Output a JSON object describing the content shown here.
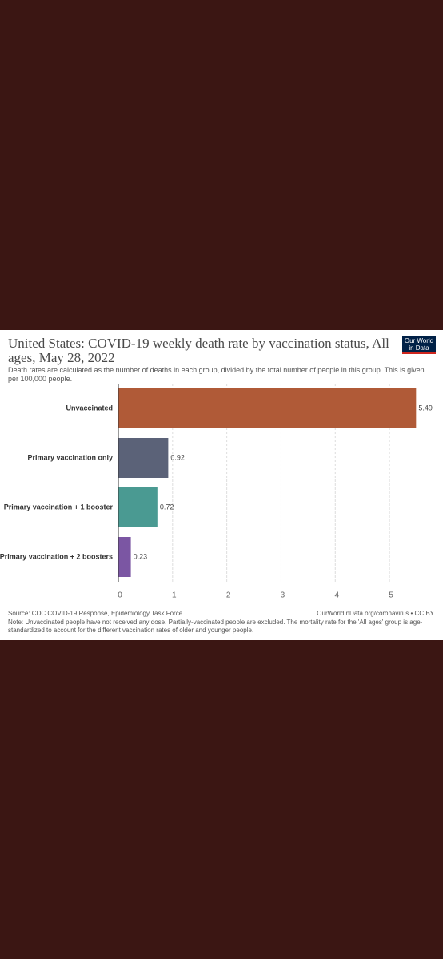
{
  "chart_data": {
    "type": "bar",
    "orientation": "horizontal",
    "title": "United States: COVID-19 weekly death rate by vaccination status, All ages, May 28, 2022",
    "subtitle": "Death rates are calculated as the number of deaths in each group, divided by the total number of people in this group. This is given per 100,000 people.",
    "logo": [
      "Our World",
      "in Data"
    ],
    "categories": [
      "Unvaccinated",
      "Primary vaccination only",
      "Primary vaccination + 1 booster",
      "Primary vaccination + 2 boosters"
    ],
    "values": [
      5.49,
      0.92,
      0.72,
      0.23
    ],
    "colors": [
      "#b05a37",
      "#5b6278",
      "#4a9a92",
      "#7b56a3"
    ],
    "xlim": [
      0,
      5.5
    ],
    "xticks": [
      0,
      1,
      2,
      3,
      4,
      5
    ],
    "grid": true,
    "source": "Source: CDC COVID-19 Response, Epidemiology Task Force",
    "url": "OurWorldInData.org/coronavirus • CC BY",
    "note": "Note: Unvaccinated people have not received any dose. Partially-vaccinated people are excluded. The mortality rate for the 'All ages' group is age-standardized to account for the different vaccination rates of older and younger people."
  }
}
